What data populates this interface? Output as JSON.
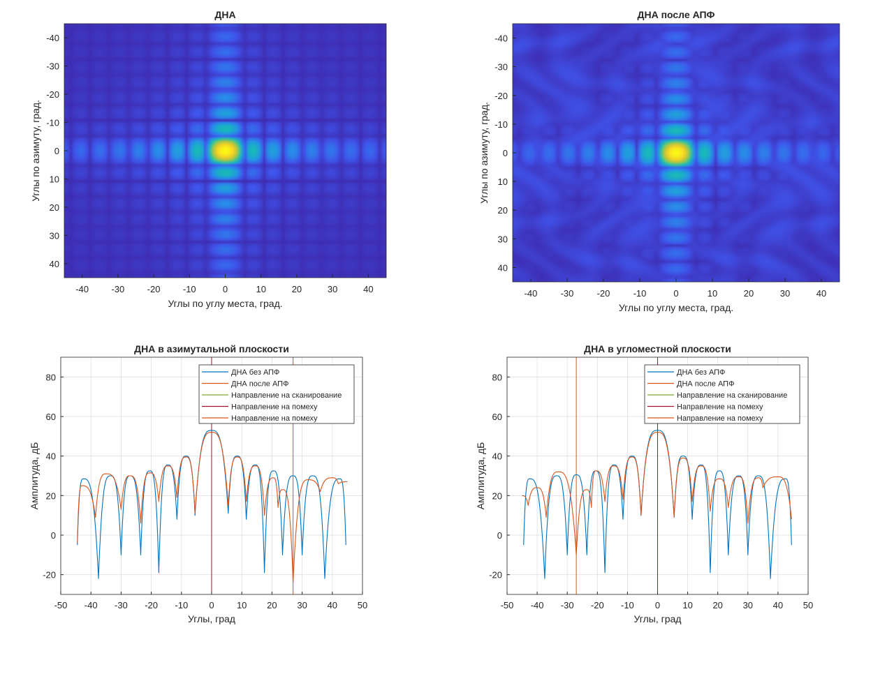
{
  "chart_data": [
    {
      "type": "heatmap",
      "title": "ДНА",
      "xlabel": "Углы по углу места, град.",
      "ylabel": "Углы по азимуту, град.",
      "xlim": [
        -45,
        45
      ],
      "ylim": [
        -45,
        45
      ],
      "y_reversed": true,
      "x_ticks": [
        -40,
        -30,
        -20,
        -10,
        0,
        10,
        20,
        30,
        40
      ],
      "y_ticks": [
        -40,
        -30,
        -20,
        -10,
        0,
        10,
        20,
        30,
        40
      ],
      "colormap": "parula",
      "peak": [
        0,
        0
      ],
      "sidelobe_pattern": "cross"
    },
    {
      "type": "heatmap",
      "title": "ДНА после АПФ",
      "xlabel": "Углы по углу места, град.",
      "ylabel": "Углы по азимуту, град.",
      "xlim": [
        -45,
        45
      ],
      "ylim": [
        -45,
        45
      ],
      "y_reversed": true,
      "x_ticks": [
        -40,
        -30,
        -20,
        -10,
        0,
        10,
        20,
        30,
        40
      ],
      "y_ticks": [
        -40,
        -30,
        -20,
        -10,
        0,
        10,
        20,
        30,
        40
      ],
      "colormap": "parula",
      "peak": [
        0,
        0
      ],
      "sidelobe_pattern": "cross-with-ripples"
    },
    {
      "type": "line",
      "title": "ДНА в азимутальной плоскости",
      "xlabel": "Углы, град",
      "ylabel": "Амплитуда, дБ",
      "xlim": [
        -50,
        50
      ],
      "ylim": [
        -30,
        90
      ],
      "x_ticks": [
        -50,
        -40,
        -30,
        -20,
        -10,
        0,
        10,
        20,
        30,
        40,
        50
      ],
      "y_ticks": [
        -20,
        0,
        20,
        40,
        60,
        80
      ],
      "grid": true,
      "legend_position": "top-right",
      "series": [
        {
          "name": "ДНА без АПФ",
          "color": "#0072BD",
          "peak_db": 53,
          "lobes": [
            [
              -42.5,
              28.5
            ],
            [
              -33.5,
              30
            ],
            [
              -27,
              30
            ],
            [
              -20.5,
              32.5
            ],
            [
              -14.5,
              35.5
            ],
            [
              -8.5,
              40
            ],
            [
              0,
              53
            ],
            [
              8.5,
              40
            ],
            [
              14.5,
              35.5
            ],
            [
              20.5,
              32.5
            ],
            [
              27,
              30
            ],
            [
              33.5,
              30
            ],
            [
              42.5,
              28.5
            ]
          ],
          "nulls": [
            [
              -44.5,
              -5
            ],
            [
              -37.5,
              -22
            ],
            [
              -30,
              -10
            ],
            [
              -23.5,
              -10
            ],
            [
              -17.5,
              -19
            ],
            [
              -11.5,
              8
            ],
            [
              -5.5,
              10
            ],
            [
              5.5,
              11
            ],
            [
              11.5,
              8
            ],
            [
              17.5,
              -19
            ],
            [
              23.5,
              -10
            ],
            [
              30,
              -10
            ],
            [
              37.5,
              -22
            ],
            [
              44.5,
              -5
            ]
          ]
        },
        {
          "name": "ДНА после АПФ",
          "color": "#D95319",
          "peak_db": 52,
          "lobes": [
            [
              -43,
              25
            ],
            [
              -35,
              31
            ],
            [
              -27,
              30
            ],
            [
              -20.5,
              31.5
            ],
            [
              -14.5,
              35
            ],
            [
              -8.5,
              39.5
            ],
            [
              0,
              52
            ],
            [
              8.5,
              39.5
            ],
            [
              14.5,
              35
            ],
            [
              20.5,
              29
            ],
            [
              23.5,
              23
            ],
            [
              32,
              28
            ],
            [
              40,
              29
            ],
            [
              45,
              27
            ]
          ],
          "nulls": [
            [
              -44.5,
              -4
            ],
            [
              -38.5,
              9
            ],
            [
              -30,
              13
            ],
            [
              -23.5,
              6
            ],
            [
              -17.5,
              17
            ],
            [
              -11.5,
              19
            ],
            [
              -5.5,
              11
            ],
            [
              5.5,
              15
            ],
            [
              11.5,
              17
            ],
            [
              17.5,
              10
            ],
            [
              22,
              14
            ],
            [
              27,
              -24
            ],
            [
              36,
              22
            ],
            [
              42,
              26
            ]
          ]
        },
        {
          "name": "Направление на сканирование",
          "color": "#77AC30",
          "vline_x": 0
        },
        {
          "name": "Направление на помеху",
          "color": "#A2142F",
          "vline_x": 0
        },
        {
          "name": "Направление на помеху",
          "color": "#D95319",
          "vline_x": 27
        }
      ]
    },
    {
      "type": "line",
      "title": "ДНА в угломестной плоскости",
      "xlabel": "Углы, град",
      "ylabel": "Амплитуда, дБ",
      "xlim": [
        -50,
        50
      ],
      "ylim": [
        -30,
        90
      ],
      "x_ticks": [
        -50,
        -40,
        -30,
        -20,
        -10,
        0,
        10,
        20,
        30,
        40,
        50
      ],
      "y_ticks": [
        -20,
        0,
        20,
        40,
        60,
        80
      ],
      "grid": true,
      "legend_position": "top-right",
      "series": [
        {
          "name": "ДНА без АПФ",
          "color": "#0072BD",
          "peak_db": 53,
          "lobes": [
            [
              -42.5,
              28.5
            ],
            [
              -33.5,
              30
            ],
            [
              -27,
              30.5
            ],
            [
              -20.5,
              32.5
            ],
            [
              -14.5,
              35.5
            ],
            [
              -8.5,
              40
            ],
            [
              0,
              53
            ],
            [
              8.5,
              40
            ],
            [
              14.5,
              35.5
            ],
            [
              20.5,
              32.5
            ],
            [
              27,
              30
            ],
            [
              33.5,
              30
            ],
            [
              42.5,
              28.5
            ]
          ],
          "nulls": [
            [
              -44.5,
              -5
            ],
            [
              -37.5,
              -22
            ],
            [
              -30,
              -10
            ],
            [
              -23.5,
              -10
            ],
            [
              -17.5,
              -19
            ],
            [
              -11.5,
              8
            ],
            [
              -5.5,
              10
            ],
            [
              5.5,
              9
            ],
            [
              11.5,
              8
            ],
            [
              17.5,
              -19
            ],
            [
              23.5,
              -10
            ],
            [
              30,
              -10
            ],
            [
              37.5,
              -22
            ],
            [
              44.5,
              -5
            ]
          ]
        },
        {
          "name": "ДНА после АПФ",
          "color": "#D95319",
          "peak_db": 52,
          "lobes": [
            [
              -45,
              20
            ],
            [
              -40,
              24
            ],
            [
              -33,
              32
            ],
            [
              -23.5,
              23
            ],
            [
              -20.5,
              32.5
            ],
            [
              -14.5,
              35
            ],
            [
              -8.5,
              39.5
            ],
            [
              0,
              52
            ],
            [
              8.5,
              39
            ],
            [
              14.5,
              35
            ],
            [
              20.5,
              28.5
            ],
            [
              27,
              29.5
            ],
            [
              33.5,
              29
            ],
            [
              40,
              29.5
            ]
          ],
          "nulls": [
            [
              -43,
              15
            ],
            [
              -37,
              9
            ],
            [
              -27,
              -10
            ],
            [
              -22,
              14
            ],
            [
              -17.5,
              17
            ],
            [
              -11.5,
              18
            ],
            [
              -5.5,
              10
            ],
            [
              5.5,
              9
            ],
            [
              11.5,
              17
            ],
            [
              17.5,
              12
            ],
            [
              23.5,
              14
            ],
            [
              30,
              6
            ],
            [
              35,
              24
            ],
            [
              44.5,
              8
            ]
          ]
        },
        {
          "name": "Направление на сканирование",
          "color": "#77AC30",
          "vline_x": 0
        },
        {
          "name": "Направление на помеху",
          "color": "#A2142F",
          "vline_x": 0
        },
        {
          "name": "Направление на помеху",
          "color": "#D95319",
          "vline_x": -27
        }
      ]
    }
  ]
}
